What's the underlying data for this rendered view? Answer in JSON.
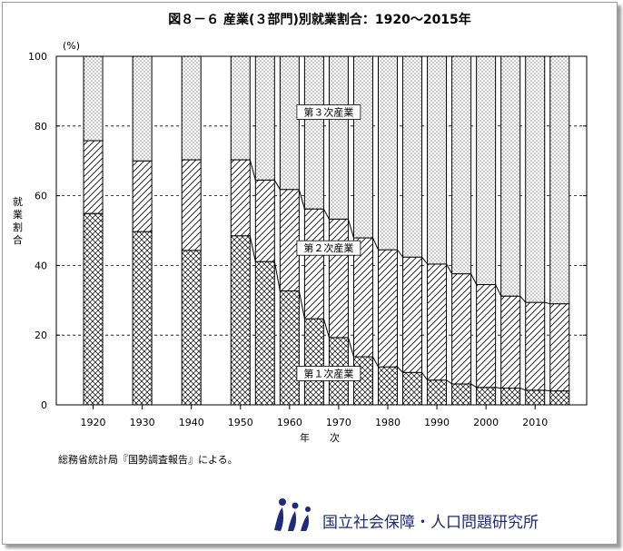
{
  "chart_data": {
    "type": "bar",
    "stacked": true,
    "title": "図８－６ 産業(３部門)別就業割合：1920～2015年",
    "ylabel": "就業割合",
    "y_unit": "(%)",
    "xlabel": "年　　次",
    "ylim": [
      0,
      100
    ],
    "y_ticks": [
      0,
      20,
      40,
      60,
      80,
      100
    ],
    "x_ticks": [
      1920,
      1930,
      1940,
      1950,
      1960,
      1970,
      1980,
      1990,
      2000,
      2010
    ],
    "categories": [
      1920,
      1930,
      1940,
      1950,
      1955,
      1960,
      1965,
      1970,
      1975,
      1980,
      1985,
      1990,
      1995,
      2000,
      2005,
      2010,
      2015
    ],
    "series": [
      {
        "name": "第１次産業",
        "values": [
          54.9,
          49.7,
          44.3,
          48.5,
          41.1,
          32.7,
          24.7,
          19.3,
          13.8,
          10.9,
          9.3,
          7.1,
          6.0,
          5.0,
          4.8,
          4.2,
          4.0
        ]
      },
      {
        "name": "第２次産業",
        "values": [
          20.9,
          20.3,
          26.0,
          21.8,
          23.4,
          29.1,
          31.5,
          34.0,
          34.1,
          33.6,
          33.1,
          33.3,
          31.6,
          29.5,
          26.4,
          25.2,
          25.0
        ]
      },
      {
        "name": "第３次産業",
        "values": [
          24.2,
          30.0,
          29.7,
          29.7,
          35.5,
          38.2,
          43.8,
          46.7,
          52.1,
          55.5,
          57.6,
          59.6,
          62.4,
          65.5,
          68.8,
          70.6,
          71.0
        ]
      }
    ],
    "grid": true,
    "patterns": {
      "第１次産業": "crosshatch",
      "第２次産業": "diagonal",
      "第３次産業": "dots"
    }
  },
  "footnote": "総務省統計局『国勢調査報告』による。",
  "logo": {
    "text": "国立社会保障・人口問題研究所",
    "color": "#1f2a7a"
  }
}
